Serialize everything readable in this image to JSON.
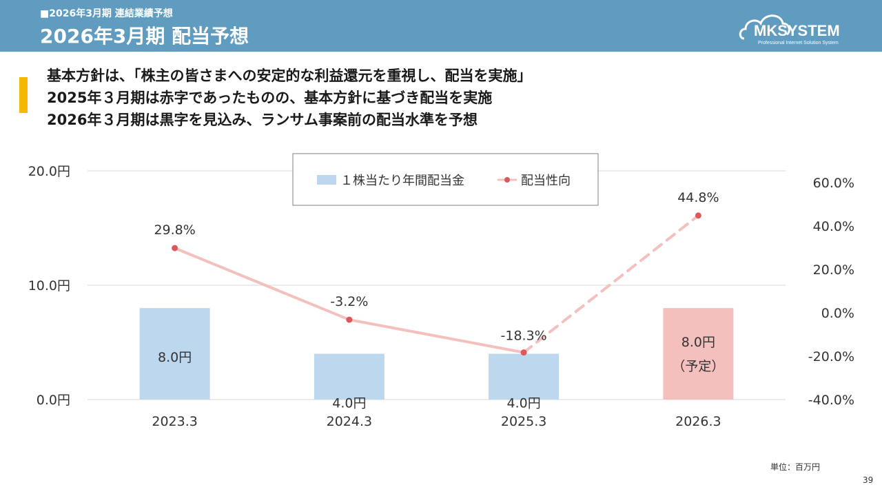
{
  "header": {
    "subtitle": "■2026年3月期  連結業績予想",
    "title": "2026年3月期 配当予想",
    "logo_text": "MKSYSTEM",
    "logo_tagline": "Professional Internet Solution System"
  },
  "lead": {
    "line1": "基本方針は、「株主の皆さまへの安定的な利益還元を重視し、配当を実施」",
    "line2": "2025年３月期は赤字であったものの、基本方針に基づき配当を実施",
    "line3": "2026年３月期は黒字を見込み、ランサム事案前の配当水準を予想"
  },
  "chart_data": {
    "type": "bar+line",
    "categories": [
      "2023.3",
      "2024.3",
      "2025.3",
      "2026.3"
    ],
    "bars": {
      "name": "１株当たり年間配当金",
      "values": [
        8.0,
        4.0,
        4.0,
        8.0
      ],
      "labels": [
        "8.0円",
        "4.0円",
        "4.0円",
        "8.0円"
      ],
      "forecast_note": "（予定）",
      "color": "#bdd7ee",
      "forecast_color": "#f4c0be"
    },
    "line": {
      "name": "配当性向",
      "values": [
        29.8,
        -3.2,
        -18.3,
        44.8
      ],
      "labels": [
        "29.8%",
        "-3.2%",
        "-18.3%",
        "44.8%"
      ],
      "color": "#f4c0be",
      "marker_color": "#e0575b",
      "forecast_dashed_from_index": 2
    },
    "y_left": {
      "range": [
        0,
        20
      ],
      "ticks": [
        0,
        10,
        20
      ],
      "tick_labels": [
        "0.0円",
        "10.0円",
        "20.0円"
      ]
    },
    "y_right": {
      "range": [
        -40,
        60
      ],
      "ticks": [
        -40,
        -20,
        0,
        20,
        40,
        60
      ],
      "tick_labels": [
        "-40.0%",
        "-20.0%",
        "0.0%",
        "20.0%",
        "40.0%",
        "60.0%"
      ]
    },
    "grid": true,
    "legend_position": "top-center"
  },
  "footer": {
    "unit_note": "単位：百万円",
    "page_number": "39"
  }
}
